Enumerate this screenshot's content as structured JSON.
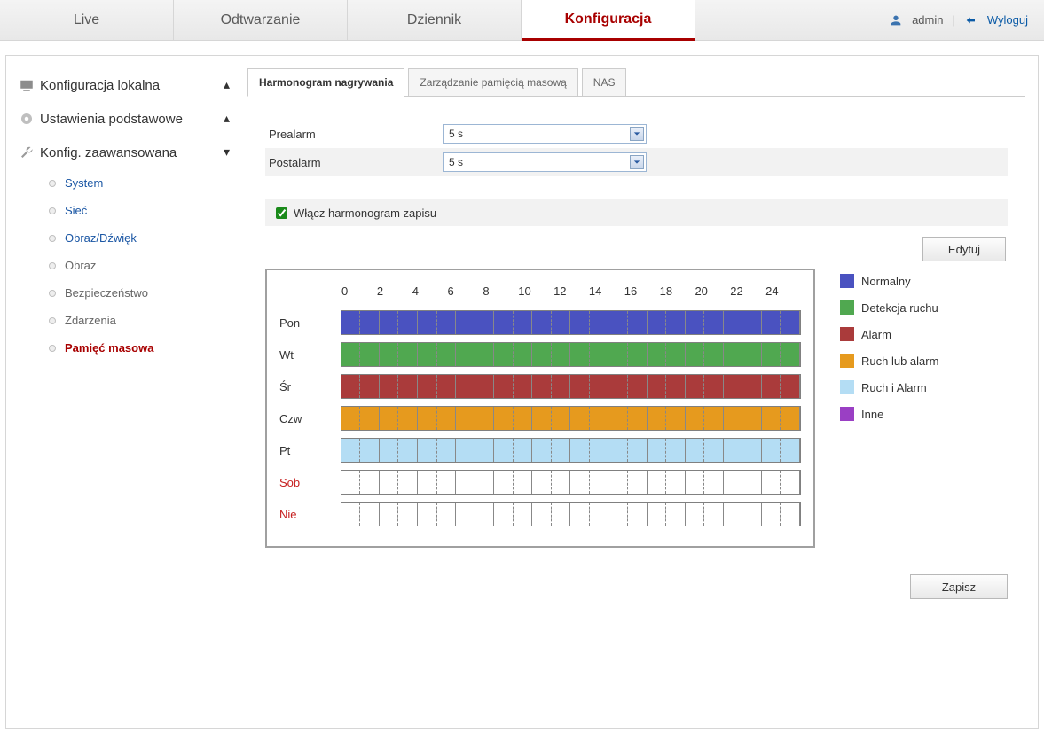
{
  "topnav": {
    "tabs": [
      {
        "name": "tab-live",
        "label": "Live",
        "active": false
      },
      {
        "name": "tab-playback",
        "label": "Odtwarzanie",
        "active": false
      },
      {
        "name": "tab-log",
        "label": "Dziennik",
        "active": false
      },
      {
        "name": "tab-config",
        "label": "Konfiguracja",
        "active": true
      }
    ],
    "user_label": "admin",
    "logout_label": "Wyloguj"
  },
  "sidebar": {
    "groups": [
      {
        "name": "grp-local-config",
        "label": "Konfiguracja lokalna",
        "icon": "local"
      },
      {
        "name": "grp-basic",
        "label": "Ustawienia podstawowe",
        "icon": "gear"
      },
      {
        "name": "grp-advanced",
        "label": "Konfig. zaawansowana",
        "icon": "wrench"
      }
    ],
    "adv_items": [
      {
        "name": "sub-system",
        "label": "System",
        "class": "link-default"
      },
      {
        "name": "sub-network",
        "label": "Sieć",
        "class": "link-default"
      },
      {
        "name": "sub-audio",
        "label": "Obraz/Dźwięk",
        "class": "link-default"
      },
      {
        "name": "sub-image",
        "label": "Obraz",
        "class": "link-grey"
      },
      {
        "name": "sub-security",
        "label": "Bezpieczeństwo",
        "class": "link-grey"
      },
      {
        "name": "sub-events",
        "label": "Zdarzenia",
        "class": "link-grey"
      },
      {
        "name": "sub-storage",
        "label": "Pamięć masowa",
        "class": "link-active"
      }
    ]
  },
  "sub_tabs": [
    {
      "name": "st-record-schedule",
      "label": "Harmonogram nagrywania",
      "active": true
    },
    {
      "name": "st-storage-mgmt",
      "label": "Zarządzanie pamięcią masową",
      "active": false
    },
    {
      "name": "st-nas",
      "label": "NAS",
      "active": false
    }
  ],
  "form": {
    "prealarm_label": "Prealarm",
    "prealarm_value": "5 s",
    "postalarm_label": "Postalarm",
    "postalarm_value": "5 s",
    "enable_label": "Włącz harmonogram zapisu",
    "enable_checked": true,
    "edit_label": "Edytuj",
    "save_label": "Zapisz"
  },
  "schedule": {
    "hours_axis": [
      "0",
      "2",
      "4",
      "6",
      "8",
      "10",
      "12",
      "14",
      "16",
      "18",
      "20",
      "22",
      "24"
    ],
    "days": [
      {
        "name": "Pon",
        "weekend": false,
        "color_class": "color-normal"
      },
      {
        "name": "Wt",
        "weekend": false,
        "color_class": "color-motion"
      },
      {
        "name": "Śr",
        "weekend": false,
        "color_class": "color-alarm"
      },
      {
        "name": "Czw",
        "weekend": false,
        "color_class": "color-moralarm"
      },
      {
        "name": "Pt",
        "weekend": false,
        "color_class": "color-mandal"
      },
      {
        "name": "Sob",
        "weekend": true,
        "color_class": "color-empty"
      },
      {
        "name": "Nie",
        "weekend": true,
        "color_class": "color-empty"
      }
    ],
    "cells_per_row": 24,
    "legend": [
      {
        "label": "Normalny",
        "color": "#4a52c0"
      },
      {
        "label": "Detekcja ruchu",
        "color": "#50a850"
      },
      {
        "label": "Alarm",
        "color": "#aa3b3b"
      },
      {
        "label": "Ruch lub alarm",
        "color": "#e69a1e"
      },
      {
        "label": "Ruch i Alarm",
        "color": "#b4ddf4"
      },
      {
        "label": "Inne",
        "color": "#9a3fc4"
      }
    ]
  }
}
